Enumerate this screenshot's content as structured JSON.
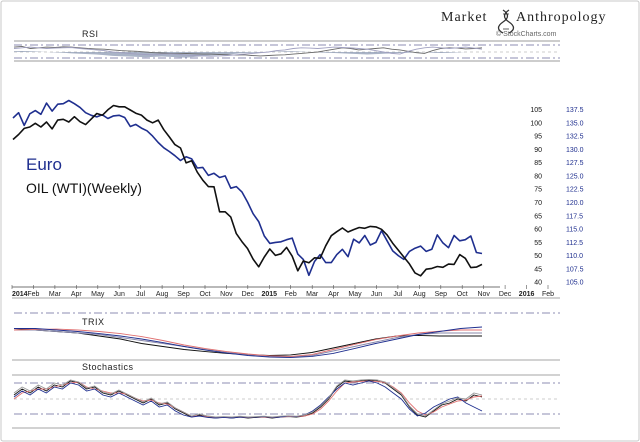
{
  "branding": {
    "name_part1": "Market",
    "name_part2": "Anthropology",
    "credit": "© StockCharts.com"
  },
  "labels": {
    "rsi": "RSI",
    "trix": "TRIX",
    "stochastics": "Stochastics"
  },
  "colors": {
    "euro": "#1f2f8f",
    "oil": "#111111",
    "trix_red": "#e07070",
    "rsi_fill": "#7b8aa8"
  },
  "chart_data": [
    {
      "type": "line",
      "legend": [
        {
          "text": "Euro",
          "color": "#1f2f8f"
        },
        {
          "text": "OIL (WTI)(Weekly)",
          "color": "#111111"
        }
      ],
      "x_ticks": [
        "2014",
        "Feb",
        "Mar",
        "Apr",
        "May",
        "Jun",
        "Jul",
        "Aug",
        "Sep",
        "Oct",
        "Nov",
        "Dec",
        "2015",
        "Feb",
        "Mar",
        "Apr",
        "May",
        "Jun",
        "Jul",
        "Aug",
        "Sep",
        "Oct",
        "Nov",
        "Dec",
        "2016",
        "Feb"
      ],
      "oil_axis": {
        "ticks": [
          40,
          45,
          50,
          55,
          60,
          65,
          70,
          75,
          80,
          85,
          90,
          95,
          100,
          105
        ],
        "range": [
          38,
          108
        ]
      },
      "euro_axis": {
        "ticks": [
          "105.0",
          "107.5",
          "110.0",
          "112.5",
          "115.0",
          "117.5",
          "120.0",
          "122.5",
          "125.0",
          "127.5",
          "130.0",
          "132.5",
          "135.0",
          "137.5"
        ],
        "range": [
          104.0,
          139.0
        ]
      },
      "series": [
        {
          "name": "Euro",
          "axis": "right",
          "values": [
            135.8,
            136.8,
            134.4,
            136.6,
            137.2,
            136.5,
            138.6,
            137.1,
            138.4,
            138.5,
            139.1,
            138.5,
            137.8,
            136.8,
            136.3,
            136.0,
            136.4,
            135.7,
            136.2,
            136.3,
            135.9,
            134.2,
            134.6,
            133.9,
            133.4,
            132.4,
            131.2,
            130.2,
            129.5,
            128.7,
            127.8,
            128.5,
            128.1,
            126.4,
            126.5,
            125.0,
            125.4,
            124.6,
            124.9,
            122.6,
            122.9,
            121.9,
            120.0,
            117.8,
            116.3,
            113.6,
            112.2,
            112.4,
            112.5,
            112.9,
            113.2,
            110.2,
            109.2,
            106.2,
            108.8,
            110.1,
            108.6,
            108.6,
            110.1,
            111.1,
            109.7,
            113.0,
            112.3,
            113.7,
            111.9,
            112.4,
            114.6,
            112.7,
            110.8,
            109.9,
            109.2,
            110.7,
            111.3,
            111.7,
            110.7,
            111.1,
            113.8,
            112.3,
            111.4,
            113.7,
            112.7,
            112.9,
            113.6,
            110.5,
            110.3
          ]
        },
        {
          "name": "OIL (WTI)(Weekly)",
          "axis": "left",
          "values": [
            93.5,
            95.4,
            97.7,
            98.2,
            99.6,
            98.2,
            100.1,
            97.5,
            100.8,
            101.1,
            100.1,
            102.1,
            100.2,
            99.1,
            101.2,
            103.3,
            102.6,
            104.7,
            106.3,
            105.8,
            105.8,
            104.6,
            103.4,
            102.7,
            100.8,
            99.8,
            100.8,
            97.2,
            94.5,
            91.6,
            90.3,
            84.7,
            85.5,
            81.2,
            78.2,
            75.8,
            75.7,
            66.3,
            66.3,
            64.3,
            58.1,
            55.1,
            52.5,
            48.5,
            45.6,
            49.3,
            52.3,
            49.9,
            50.5,
            52.9,
            49.6,
            44.1,
            47.8,
            47.1,
            49.0,
            48.8,
            53.5,
            57.3,
            58.8,
            60.2,
            58.7,
            59.6,
            60.4,
            60.1,
            60.8,
            60.6,
            59.7,
            57.6,
            54.5,
            51.9,
            49.3,
            46.7,
            43.3,
            42.2,
            44.7,
            45.0,
            45.7,
            45.4,
            46.6,
            46.5,
            50.2,
            48.8,
            45.3,
            45.5,
            46.5
          ]
        }
      ]
    },
    {
      "type": "line",
      "label": "RSI",
      "series": [
        {
          "values": [
            0.7,
            0.8,
            0.5,
            0.6,
            0.7,
            0.65,
            0.75,
            0.7,
            0.6,
            0.5,
            0.45,
            0.4,
            0.3,
            0.2,
            0.15,
            0.1,
            0.0,
            -0.1,
            -0.15,
            -0.2,
            -0.25,
            -0.2,
            -0.25,
            -0.3,
            -0.3,
            -0.35,
            -0.4,
            -0.45,
            -0.4,
            -0.5,
            -0.55,
            -0.5,
            -0.45,
            -0.4,
            -0.3,
            -0.2,
            -0.1,
            0.0,
            0.2,
            0.4,
            0.6,
            0.5,
            0.3,
            0.4,
            0.5,
            0.6,
            0.4,
            0.3,
            0.1,
            -0.1,
            -0.2,
            0.2,
            0.5,
            0.6,
            0.55,
            0.45,
            0.5,
            0.6
          ]
        },
        {
          "values": [
            0.5,
            0.6,
            0.7,
            0.6,
            0.5,
            0.55,
            0.6,
            0.65,
            0.5,
            0.4,
            0.3,
            0.2,
            0.0,
            -0.1,
            -0.2,
            -0.3,
            -0.35,
            -0.4,
            -0.3,
            -0.25,
            -0.35,
            -0.45,
            -0.5,
            -0.55,
            -0.6,
            -0.55,
            -0.5,
            -0.4,
            -0.3,
            -0.2,
            -0.1,
            0.0,
            0.2,
            0.3,
            0.5,
            0.6,
            0.55,
            0.5,
            0.6,
            0.7,
            0.65,
            0.6,
            0.5,
            0.4,
            0.2,
            0.0,
            -0.2,
            -0.3,
            0.1,
            0.4,
            0.6,
            0.7,
            0.6,
            0.5,
            0.6,
            0.7,
            0.55,
            0.4
          ]
        }
      ],
      "fill_values": [
        0.1,
        0.15,
        0.1,
        0.05,
        0.0,
        -0.05,
        -0.1,
        -0.2,
        -0.25,
        -0.3,
        -0.35,
        -0.45,
        -0.55,
        -0.6,
        -0.65,
        -0.7,
        -0.75,
        -0.7,
        -0.65,
        -0.7,
        -0.75,
        -0.8,
        -0.7,
        -0.6,
        -0.5,
        -0.45,
        -0.35,
        -0.25,
        -0.15,
        -0.1,
        -0.05,
        0.0,
        0.05,
        0.1,
        0.1,
        0.05,
        0.0,
        -0.05,
        -0.1,
        -0.15,
        -0.2,
        -0.25,
        -0.3,
        -0.35,
        -0.3,
        -0.25,
        -0.2,
        -0.15,
        -0.1,
        -0.05,
        0.0,
        -0.1,
        -0.15,
        -0.1,
        -0.05,
        0.0,
        0.0,
        0.0
      ]
    },
    {
      "type": "line",
      "label": "TRIX",
      "series": [
        {
          "color": "#111111",
          "values": [
            0.05,
            0.0,
            -0.05,
            -0.1,
            -0.2,
            -0.3,
            -0.45,
            -0.55,
            -0.65,
            -0.72,
            -0.78,
            -0.82,
            -0.85,
            -0.83,
            -0.75,
            -0.6,
            -0.45,
            -0.3,
            -0.2,
            -0.18,
            -0.2,
            -0.2,
            -0.2
          ]
        },
        {
          "color": "#8888aa",
          "values": [
            0.0,
            0.0,
            -0.05,
            -0.1,
            -0.15,
            -0.25,
            -0.35,
            -0.45,
            -0.55,
            -0.65,
            -0.75,
            -0.82,
            -0.88,
            -0.9,
            -0.85,
            -0.7,
            -0.55,
            -0.4,
            -0.25,
            -0.15,
            -0.1,
            -0.1,
            -0.1
          ]
        },
        {
          "color": "#e07070",
          "values": [
            0.0,
            0.02,
            0.03,
            0.0,
            -0.05,
            -0.12,
            -0.22,
            -0.35,
            -0.5,
            -0.62,
            -0.72,
            -0.8,
            -0.86,
            -0.88,
            -0.82,
            -0.65,
            -0.48,
            -0.32,
            -0.2,
            -0.1,
            -0.04,
            0.0,
            0.0
          ]
        },
        {
          "color": "#1f2f8f",
          "values": [
            0.05,
            0.05,
            0.0,
            -0.05,
            -0.12,
            -0.2,
            -0.3,
            -0.42,
            -0.55,
            -0.67,
            -0.77,
            -0.85,
            -0.9,
            -0.92,
            -0.88,
            -0.78,
            -0.62,
            -0.45,
            -0.3,
            -0.15,
            -0.05,
            0.05,
            0.1
          ]
        }
      ]
    },
    {
      "type": "line",
      "label": "Stochastics",
      "series": [
        {
          "color": "#111111",
          "values": [
            0.2,
            0.5,
            0.3,
            0.6,
            0.4,
            0.7,
            0.6,
            0.9,
            0.8,
            0.5,
            0.6,
            0.3,
            0.2,
            0.4,
            0.2,
            0.0,
            -0.2,
            0.0,
            -0.3,
            -0.2,
            -0.5,
            -0.7,
            -0.9,
            -0.8,
            -0.9,
            -0.95,
            -0.9,
            -0.95,
            -0.9,
            -0.95,
            -0.92,
            -0.9,
            -0.95,
            -0.9,
            -0.88,
            -0.9,
            -0.85,
            -0.7,
            -0.4,
            0.0,
            0.6,
            0.9,
            0.85,
            0.9,
            0.95,
            0.9,
            0.8,
            0.5,
            0.2,
            -0.4,
            -0.8,
            -0.9,
            -0.6,
            -0.3,
            -0.2,
            0.0,
            -0.1,
            0.2,
            0.1
          ]
        },
        {
          "color": "#e07070",
          "values": [
            0.0,
            0.3,
            0.4,
            0.5,
            0.5,
            0.6,
            0.7,
            0.8,
            0.85,
            0.6,
            0.5,
            0.4,
            0.3,
            0.3,
            0.25,
            0.05,
            -0.1,
            -0.05,
            -0.2,
            -0.25,
            -0.45,
            -0.65,
            -0.85,
            -0.85,
            -0.88,
            -0.92,
            -0.9,
            -0.92,
            -0.9,
            -0.93,
            -0.9,
            -0.9,
            -0.92,
            -0.9,
            -0.88,
            -0.88,
            -0.85,
            -0.75,
            -0.5,
            -0.1,
            0.4,
            0.8,
            0.85,
            0.88,
            0.9,
            0.88,
            0.82,
            0.6,
            0.3,
            -0.2,
            -0.6,
            -0.8,
            -0.65,
            -0.4,
            -0.25,
            -0.1,
            -0.05,
            0.1,
            0.15
          ]
        },
        {
          "color": "#1f2f8f",
          "values": [
            0.1,
            0.4,
            0.2,
            0.5,
            0.3,
            0.6,
            0.5,
            0.8,
            0.7,
            0.4,
            0.5,
            0.2,
            0.1,
            0.3,
            0.1,
            -0.1,
            -0.3,
            -0.1,
            -0.4,
            -0.3,
            -0.6,
            -0.8,
            -0.9,
            -0.85,
            -0.92,
            -0.95,
            -0.92,
            -0.95,
            -0.9,
            -0.92,
            -0.9,
            -0.88,
            -0.92,
            -0.9,
            -0.85,
            -0.88,
            -0.8,
            -0.6,
            -0.3,
            0.1,
            0.5,
            0.8,
            0.7,
            0.8,
            0.9,
            0.8,
            0.6,
            0.3,
            0.0,
            -0.5,
            -0.85,
            -0.7,
            -0.4,
            -0.2,
            0.0,
            0.1,
            -0.2,
            -0.4,
            -0.6
          ]
        },
        {
          "color": "#999999",
          "values": [
            0.3,
            0.6,
            0.4,
            0.7,
            0.5,
            0.8,
            0.7,
            0.95,
            0.85,
            0.55,
            0.65,
            0.35,
            0.25,
            0.45,
            0.25,
            0.05,
            -0.15,
            0.05,
            -0.25,
            -0.15,
            -0.45,
            -0.65,
            -0.85,
            -0.75,
            -0.85,
            -0.9,
            -0.88,
            -0.9,
            -0.86,
            -0.9,
            -0.88,
            -0.86,
            -0.9,
            -0.86,
            -0.84,
            -0.86,
            -0.8,
            -0.65,
            -0.35,
            0.05,
            0.65,
            0.95,
            0.9,
            0.95,
            0.98,
            0.95,
            0.85,
            0.55,
            0.25,
            -0.35,
            -0.75,
            -0.85,
            -0.55,
            -0.25,
            -0.1,
            0.05,
            0.0,
            0.3,
            0.2
          ]
        }
      ]
    }
  ]
}
